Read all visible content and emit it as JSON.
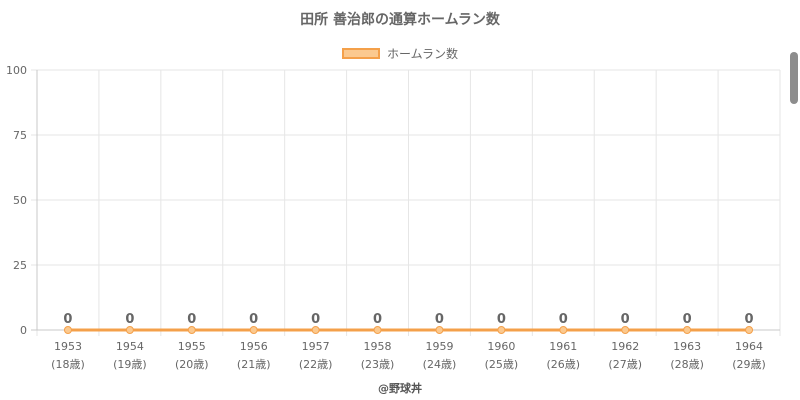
{
  "title": "田所 善治郎の通算ホームラン数",
  "credit": "@野球丼",
  "colors": {
    "line": "#f4a04a",
    "fill": "#fbc98f",
    "grid": "#e6e6e6",
    "text": "#666666"
  },
  "chart_data": {
    "type": "line",
    "title": "田所 善治郎の通算ホームラン数",
    "categories": [
      "1953",
      "1954",
      "1955",
      "1956",
      "1957",
      "1958",
      "1959",
      "1960",
      "1961",
      "1962",
      "1963",
      "1964"
    ],
    "category_sublabels": [
      "(18歳)",
      "(19歳)",
      "(20歳)",
      "(21歳)",
      "(22歳)",
      "(23歳)",
      "(24歳)",
      "(25歳)",
      "(26歳)",
      "(27歳)",
      "(28歳)",
      "(29歳)"
    ],
    "series": [
      {
        "name": "ホームラン数",
        "values": [
          0,
          0,
          0,
          0,
          0,
          0,
          0,
          0,
          0,
          0,
          0,
          0
        ]
      }
    ],
    "data_labels": [
      "0",
      "0",
      "0",
      "0",
      "0",
      "0",
      "0",
      "0",
      "0",
      "0",
      "0",
      "0"
    ],
    "ylim": [
      0,
      100
    ],
    "yticks": [
      "0",
      "25",
      "50",
      "75",
      "100"
    ],
    "ytick_values": [
      0,
      25,
      50,
      75,
      100
    ],
    "grid": true,
    "legend_position": "top-center"
  }
}
